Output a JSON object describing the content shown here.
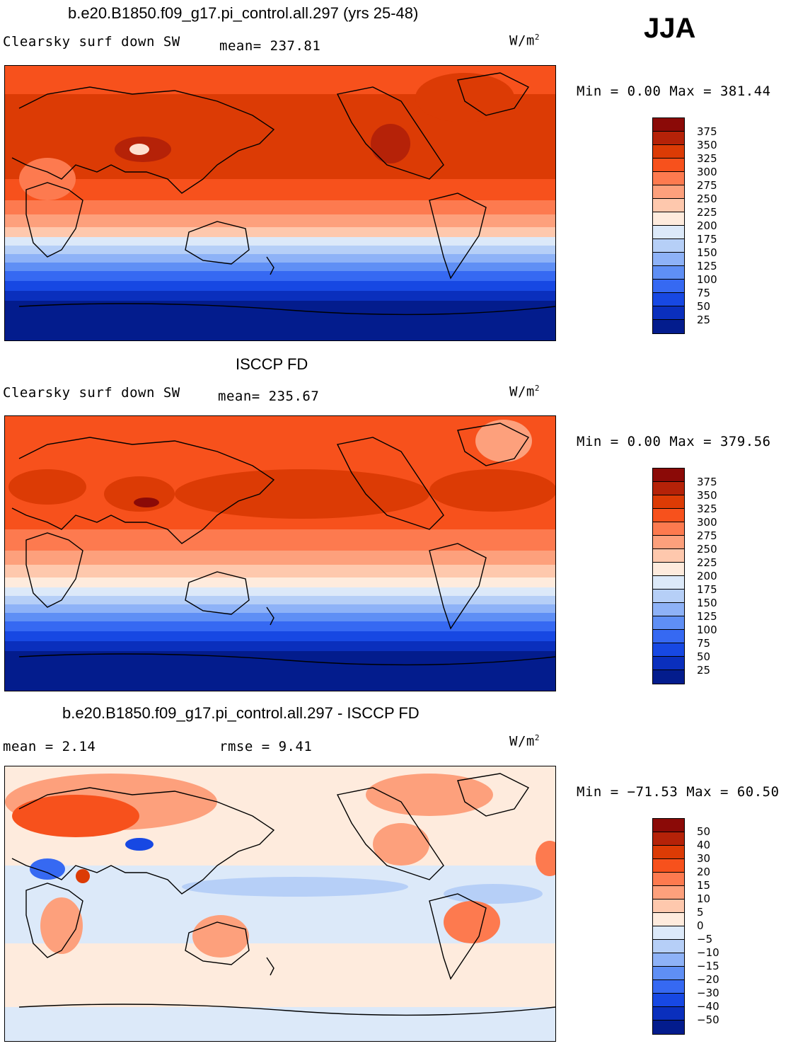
{
  "season": "JJA",
  "unit": "W/m",
  "unit_sup": "2",
  "panels": [
    {
      "title": "b.e20.B1850.f09_g17.pi_control.all.297 (yrs 25-48)",
      "left_label": "Clearsky surf down SW",
      "stat_text": "mean= 237.81",
      "minmax": "Min =    0.00 Max = 381.44",
      "levels": [
        "375",
        "350",
        "325",
        "300",
        "275",
        "250",
        "225",
        "200",
        "175",
        "150",
        "125",
        "100",
        "75",
        "50",
        "25"
      ]
    },
    {
      "title": "ISCCP FD",
      "left_label": "Clearsky surf down SW",
      "stat_text": "mean= 235.67",
      "minmax": "Min =    0.00 Max = 379.56",
      "levels": [
        "375",
        "350",
        "325",
        "300",
        "275",
        "250",
        "225",
        "200",
        "175",
        "150",
        "125",
        "100",
        "75",
        "50",
        "25"
      ]
    },
    {
      "title": "b.e20.B1850.f09_g17.pi_control.all.297 - ISCCP FD",
      "left_label": "mean =    2.14",
      "stat_text": "rmse =    9.41",
      "minmax": "Min = −71.53 Max =  60.50",
      "levels": [
        "50",
        "40",
        "30",
        "20",
        "15",
        "10",
        "5",
        "0",
        "−5",
        "−10",
        "−15",
        "−20",
        "−30",
        "−40",
        "−50"
      ]
    }
  ],
  "colors": {
    "abs_scale": [
      "#8b0a07",
      "#b52208",
      "#dc3b05",
      "#f7511c",
      "#fd7a4f",
      "#fda07c",
      "#fec8ad",
      "#feebdd",
      "#dce9f9",
      "#b6cff7",
      "#8eb2f7",
      "#5f8ff5",
      "#3669f2",
      "#1748e3",
      "#0a2fbd",
      "#031c8d"
    ],
    "diff_scale": [
      "#8b0a07",
      "#b52208",
      "#dc3b05",
      "#f7511c",
      "#fd7a4f",
      "#fda07c",
      "#fec8ad",
      "#feebdd",
      "#dce9f9",
      "#b6cff7",
      "#8eb2f7",
      "#5f8ff5",
      "#3669f2",
      "#1748e3",
      "#0a2fbd",
      "#031c8d"
    ]
  }
}
